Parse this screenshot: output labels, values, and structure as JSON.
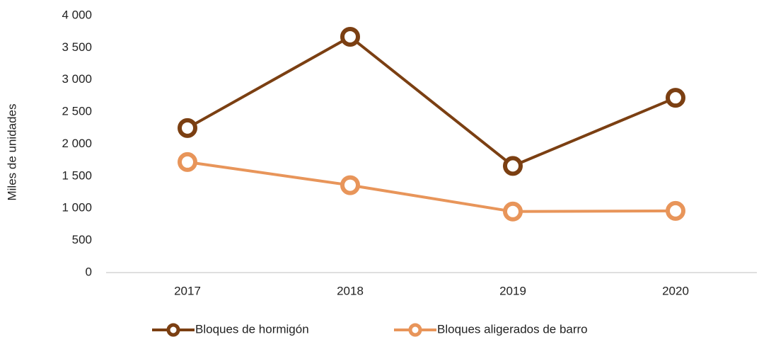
{
  "chart_data": {
    "type": "line",
    "y_axis_label": "Miles de unidades",
    "categories": [
      "2017",
      "2018",
      "2019",
      "2020"
    ],
    "series": [
      {
        "name": "Bloques de hormigón",
        "color": "#7b3f12",
        "values": [
          2250,
          3670,
          1660,
          2720
        ]
      },
      {
        "name": "Bloques aligerados de barro",
        "color": "#e8955a",
        "values": [
          1720,
          1360,
          950,
          960
        ]
      }
    ],
    "ylim": [
      0,
      4000
    ],
    "yticks": [
      0,
      500,
      {
        "value": 1000,
        "label": "1 000"
      },
      {
        "value": 1500,
        "label": "1 500"
      },
      {
        "value": 2000,
        "label": "2 000"
      },
      {
        "value": 2500,
        "label": "2 500"
      },
      {
        "value": 3000,
        "label": "3 000"
      },
      {
        "value": 3500,
        "label": "3 500"
      },
      {
        "value": 4000,
        "label": "4 000"
      }
    ],
    "legend": "bottom",
    "grid": false
  }
}
